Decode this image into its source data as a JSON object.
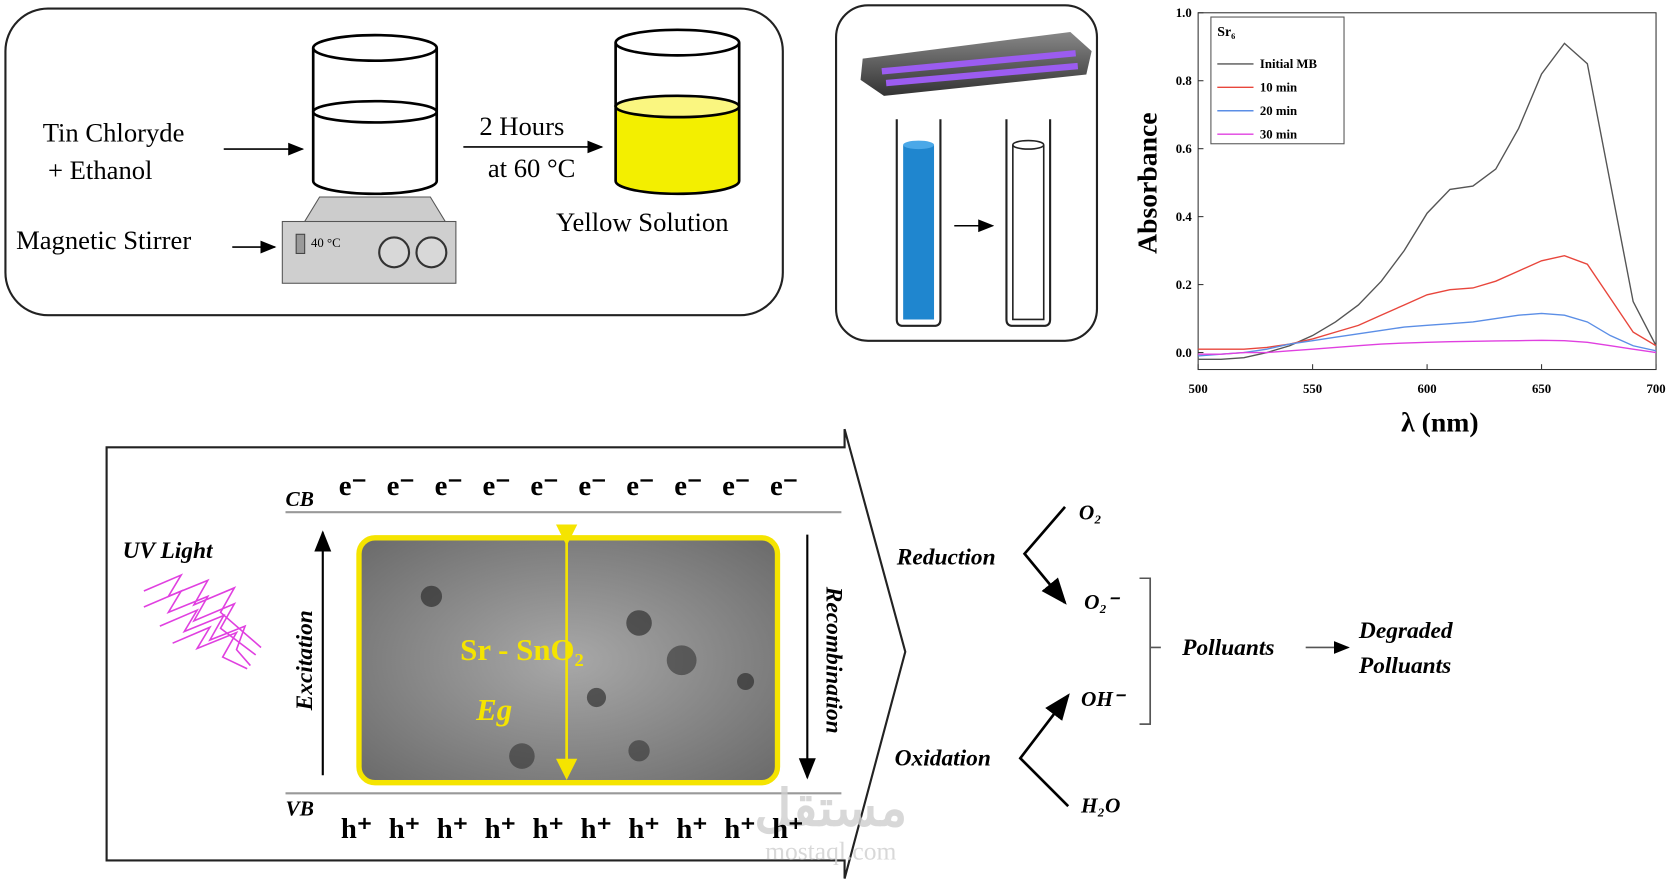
{
  "synthesis": {
    "reagent_line1": "Tin Chloryde",
    "reagent_line2": "+ Ethanol",
    "stirrer": "Magnetic Stirrer",
    "stirrer_display": "40 °C",
    "condition_line1": "2 Hours",
    "condition_line2": "at 60 °C",
    "product": "Yellow Solution"
  },
  "chart_data": {
    "type": "line",
    "y_label": "Absorbance",
    "x_label": "λ (nm)",
    "legend_title": "Sr₆",
    "legend": "upper left",
    "x": [
      500,
      510,
      520,
      530,
      540,
      550,
      560,
      570,
      580,
      590,
      600,
      610,
      620,
      630,
      640,
      650,
      660,
      670,
      680,
      690,
      700
    ],
    "series": [
      {
        "name": "Initial MB",
        "color": "#555555",
        "values": [
          -0.02,
          -0.02,
          -0.015,
          0.0,
          0.02,
          0.05,
          0.09,
          0.14,
          0.21,
          0.3,
          0.41,
          0.48,
          0.49,
          0.54,
          0.66,
          0.82,
          0.91,
          0.85,
          0.5,
          0.15,
          0.02
        ]
      },
      {
        "name": "10 min",
        "color": "#e8463c",
        "values": [
          0.01,
          0.01,
          0.01,
          0.015,
          0.025,
          0.04,
          0.06,
          0.08,
          0.11,
          0.14,
          0.17,
          0.185,
          0.19,
          0.21,
          0.24,
          0.27,
          0.285,
          0.26,
          0.16,
          0.06,
          0.02
        ]
      },
      {
        "name": "20 min",
        "color": "#5b8ee6",
        "values": [
          -0.01,
          -0.005,
          0.0,
          0.01,
          0.025,
          0.035,
          0.045,
          0.055,
          0.065,
          0.075,
          0.08,
          0.085,
          0.09,
          0.1,
          0.11,
          0.115,
          0.11,
          0.09,
          0.05,
          0.02,
          0.005
        ]
      },
      {
        "name": "30 min",
        "color": "#e040e0",
        "values": [
          -0.005,
          -0.005,
          0.0,
          0.0,
          0.005,
          0.01,
          0.015,
          0.02,
          0.025,
          0.028,
          0.03,
          0.032,
          0.033,
          0.034,
          0.035,
          0.036,
          0.035,
          0.03,
          0.02,
          0.01,
          0.0
        ]
      }
    ],
    "xlim": [
      500,
      700
    ],
    "xticks": [
      500,
      550,
      600,
      650,
      700
    ],
    "ylim": [
      -0.05,
      1.0
    ],
    "yticks": [
      {
        "value": 0,
        "label": "0.0"
      },
      {
        "value": 0.2,
        "label": "0.2"
      },
      {
        "value": 0.4,
        "label": "0.4"
      },
      {
        "value": 0.6,
        "label": "0.6"
      },
      {
        "value": 0.8,
        "label": "0.8"
      },
      {
        "value": 1.0,
        "label": "1.0"
      }
    ]
  },
  "mechanism": {
    "light": "UV Light",
    "conduction_band": "CB",
    "valence_band": "VB",
    "electrons": [
      "e⁻",
      "e⁻",
      "e⁻",
      "e⁻",
      "e⁻",
      "e⁻",
      "e⁻",
      "e⁻",
      "e⁻",
      "e⁻"
    ],
    "holes": [
      "h⁺",
      "h⁺",
      "h⁺",
      "h⁺",
      "h⁺",
      "h⁺",
      "h⁺",
      "h⁺",
      "h⁺",
      "h⁺"
    ],
    "material": "Sr - SnO₂",
    "band_gap": "Eg",
    "excitation": "Excitation",
    "recombination": "Recombination",
    "reduction": {
      "label": "Reduction",
      "reactant": "O₂",
      "product": "O₂⁻"
    },
    "oxidation": {
      "label": "Oxidation",
      "reactant": "H₂O",
      "product": "OH⁻"
    },
    "pollutants": "Polluants",
    "result_line1": "Degraded",
    "result_line2": "Polluants"
  },
  "watermark": {
    "arabic": "مستقل",
    "latin": "mostaql.com"
  }
}
